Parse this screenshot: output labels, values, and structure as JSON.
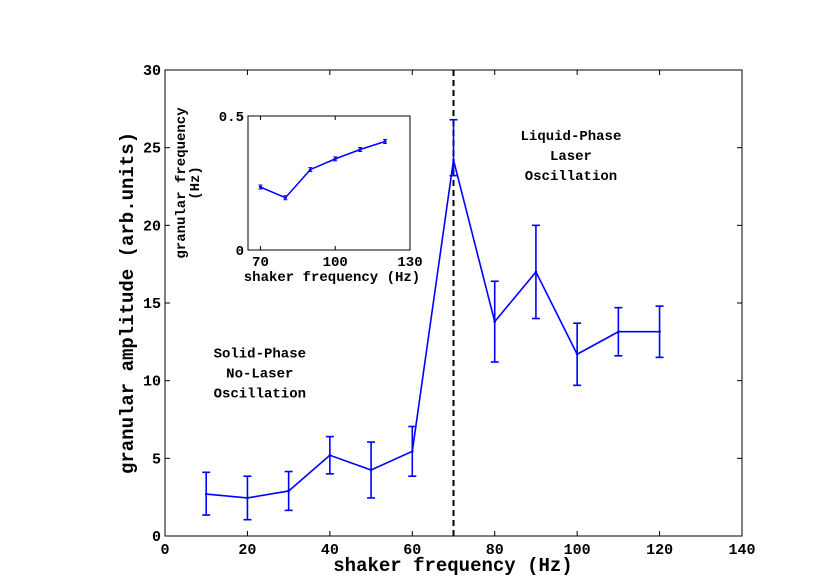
{
  "chart_data": [
    {
      "type": "line",
      "title": "",
      "xlabel": "shaker frequency (Hz)",
      "ylabel": "granular amplitude (arb.units)",
      "xlim": [
        0,
        140
      ],
      "ylim": [
        0,
        30
      ],
      "xticks": [
        0,
        20,
        40,
        60,
        80,
        100,
        120,
        140
      ],
      "yticks": [
        0,
        5,
        10,
        15,
        20,
        25,
        30
      ],
      "series": [
        {
          "name": "granular amplitude",
          "color": "#0000ff",
          "x": [
            10,
            20,
            30,
            40,
            50,
            60,
            70,
            80,
            90,
            100,
            110,
            120
          ],
          "y": [
            2.7,
            2.45,
            2.9,
            5.2,
            4.25,
            5.45,
            24.2,
            13.8,
            17.0,
            11.7,
            13.15,
            13.15
          ],
          "err_low": [
            1.35,
            1.4,
            1.25,
            1.2,
            1.8,
            1.6,
            1.0,
            2.6,
            3.0,
            2.0,
            1.55,
            1.65
          ],
          "err_high": [
            1.4,
            1.4,
            1.25,
            1.2,
            1.8,
            1.6,
            2.6,
            2.6,
            3.0,
            2.0,
            1.55,
            1.65
          ]
        }
      ],
      "reference_line": {
        "x": 70,
        "style": "dashed",
        "color": "#000000"
      },
      "annotations": [
        {
          "lines": [
            "Solid-Phase",
            "No-Laser",
            "Oscillation"
          ],
          "x": 23,
          "y": 11.5
        },
        {
          "lines": [
            "Liquid-Phase",
            "Laser",
            "Oscillation"
          ],
          "x": 98.5,
          "y": 25.5
        }
      ]
    },
    {
      "type": "line",
      "title": "",
      "xlabel": "shaker frequency (Hz)",
      "ylabel": "granular frequency (Hz)",
      "xlim": [
        65,
        130
      ],
      "ylim": [
        0,
        0.5
      ],
      "xticks": [
        70,
        100,
        130
      ],
      "yticks": [
        0,
        0.5
      ],
      "series": [
        {
          "name": "granular frequency",
          "color": "#0000ff",
          "x": [
            70,
            80,
            90,
            100,
            110,
            120
          ],
          "y": [
            0.235,
            0.195,
            0.3,
            0.34,
            0.375,
            0.405
          ]
        }
      ]
    }
  ]
}
